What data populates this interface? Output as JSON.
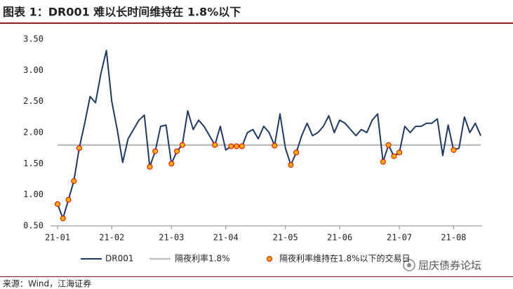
{
  "chart_data": {
    "type": "line",
    "title": "图表 1：DR001 难以长时间维持在 1.8%以下",
    "source": "来源：Wind，江海证券",
    "watermark": "屈庆债券论坛",
    "categories": [
      "21-01",
      null,
      null,
      null,
      null,
      null,
      null,
      null,
      null,
      null,
      "21-02",
      null,
      null,
      null,
      null,
      null,
      null,
      null,
      null,
      null,
      null,
      "21-03",
      null,
      null,
      null,
      null,
      null,
      null,
      null,
      null,
      null,
      "21-04",
      null,
      null,
      null,
      null,
      null,
      null,
      null,
      null,
      null,
      null,
      "21-05",
      null,
      null,
      null,
      null,
      null,
      null,
      null,
      null,
      null,
      "21-06",
      null,
      null,
      null,
      null,
      null,
      null,
      null,
      null,
      null,
      null,
      "21-07",
      null,
      null,
      null,
      null,
      null,
      null,
      null,
      null,
      null,
      "21-08",
      null,
      null,
      null,
      null,
      null
    ],
    "series": [
      {
        "name": "DR001",
        "color": "#1f3864",
        "style": "line",
        "values": [
          0.85,
          0.62,
          0.92,
          1.22,
          1.75,
          2.15,
          2.58,
          2.48,
          2.95,
          3.32,
          2.5,
          2.05,
          1.52,
          1.9,
          2.05,
          2.2,
          2.28,
          1.45,
          1.7,
          2.1,
          2.12,
          1.5,
          1.7,
          1.8,
          2.35,
          2.05,
          2.2,
          2.1,
          1.95,
          1.8,
          2.1,
          1.72,
          1.78,
          1.78,
          1.78,
          2.0,
          2.05,
          1.9,
          2.1,
          2.0,
          1.79,
          2.3,
          1.75,
          1.48,
          1.68,
          1.95,
          2.15,
          1.95,
          2.0,
          2.1,
          2.27,
          2.0,
          2.2,
          2.15,
          2.05,
          1.95,
          2.05,
          2.0,
          2.2,
          2.3,
          1.53,
          1.8,
          1.62,
          1.68,
          2.1,
          2.0,
          2.1,
          2.1,
          2.15,
          2.15,
          2.22,
          1.63,
          2.12,
          1.72,
          1.75,
          2.25,
          2.0,
          2.15,
          1.95
        ]
      },
      {
        "name": "隔夜利率维持在1.8%以下的交易日",
        "color": "#ffb000",
        "edge": "#e60000",
        "style": "dots",
        "values": [
          0.85,
          0.62,
          0.92,
          1.22,
          1.75,
          null,
          null,
          null,
          null,
          null,
          null,
          null,
          null,
          null,
          null,
          null,
          null,
          1.45,
          1.7,
          null,
          null,
          1.5,
          1.7,
          1.8,
          null,
          null,
          null,
          null,
          null,
          1.8,
          null,
          null,
          1.78,
          1.78,
          1.78,
          null,
          null,
          null,
          null,
          null,
          1.79,
          null,
          null,
          1.48,
          1.68,
          null,
          null,
          null,
          null,
          null,
          null,
          null,
          null,
          null,
          null,
          null,
          null,
          null,
          null,
          null,
          1.53,
          1.8,
          1.62,
          1.68,
          null,
          null,
          null,
          null,
          null,
          null,
          null,
          null,
          null,
          1.72,
          null,
          null,
          null,
          null,
          null
        ]
      }
    ],
    "reference_lines": [
      {
        "name": "隔夜利率1.8%",
        "value": 1.8,
        "color": "#bfbfbf"
      }
    ],
    "ylim": [
      0.5,
      3.5
    ],
    "yticks": [
      {
        "value": 0.5,
        "label": "0.50"
      },
      {
        "value": 1.0,
        "label": "1.00"
      },
      {
        "value": 1.5,
        "label": "1.50"
      },
      {
        "value": 2.0,
        "label": "2.00"
      },
      {
        "value": 2.5,
        "label": "2.50"
      },
      {
        "value": 3.0,
        "label": "3.00"
      },
      {
        "value": 3.5,
        "label": "3.50"
      }
    ],
    "grid": false,
    "legend": "bottom"
  }
}
